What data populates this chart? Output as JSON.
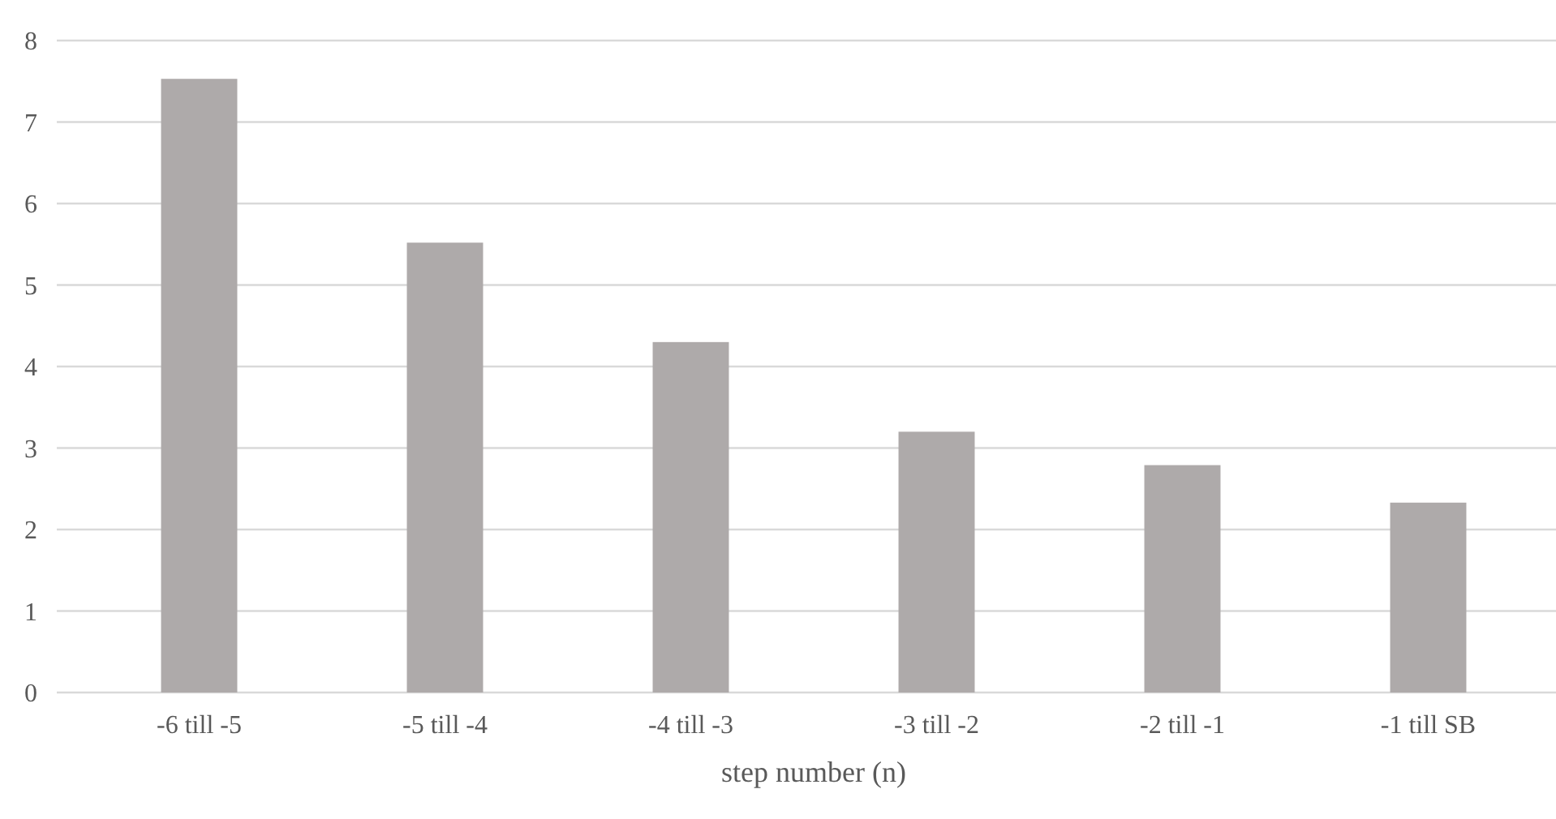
{
  "chart_data": {
    "type": "bar",
    "xlabel": "step number (n)",
    "categories": [
      "-6 till -5",
      "-5 till -4",
      "-4 till -3",
      "-3 till -2",
      "-2 till -1",
      "-1 till SB"
    ],
    "values": [
      7.53,
      5.52,
      4.3,
      3.2,
      2.79,
      2.33
    ],
    "color": "#aeaaaa",
    "ylim": [
      0,
      8
    ],
    "yticks": [
      0,
      1,
      2,
      3,
      4,
      5,
      6,
      7,
      8
    ],
    "grid": "y"
  }
}
